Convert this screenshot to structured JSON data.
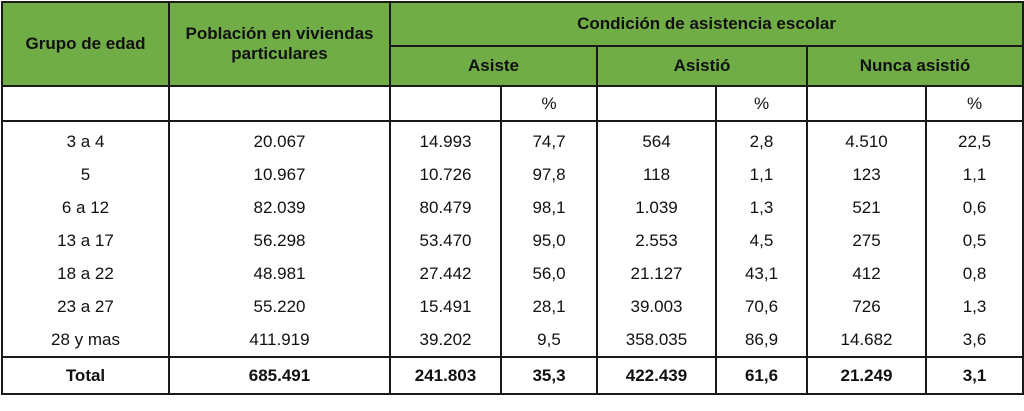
{
  "header": {
    "age_group": "Grupo de edad",
    "population": "Población en viviendas particulares",
    "condition": "Condición de asistencia escolar",
    "groups": [
      "Asiste",
      "Asistió",
      "Nunca asistió"
    ],
    "pct": "%"
  },
  "rows": [
    [
      "3 a 4",
      "20.067",
      "14.993",
      "74,7",
      "564",
      "2,8",
      "4.510",
      "22,5"
    ],
    [
      "5",
      "10.967",
      "10.726",
      "97,8",
      "118",
      "1,1",
      "123",
      "1,1"
    ],
    [
      "6 a 12",
      "82.039",
      "80.479",
      "98,1",
      "1.039",
      "1,3",
      "521",
      "0,6"
    ],
    [
      "13 a 17",
      "56.298",
      "53.470",
      "95,0",
      "2.553",
      "4,5",
      "275",
      "0,5"
    ],
    [
      "18 a 22",
      "48.981",
      "27.442",
      "56,0",
      "21.127",
      "43,1",
      "412",
      "0,8"
    ],
    [
      "23 a 27",
      "55.220",
      "15.491",
      "28,1",
      "39.003",
      "70,6",
      "726",
      "1,3"
    ],
    [
      "28 y mas",
      "411.919",
      "39.202",
      "9,5",
      "358.035",
      "86,9",
      "14.682",
      "3,6"
    ]
  ],
  "total": [
    "Total",
    "685.491",
    "241.803",
    "35,3",
    "422.439",
    "61,6",
    "21.249",
    "3,1"
  ]
}
